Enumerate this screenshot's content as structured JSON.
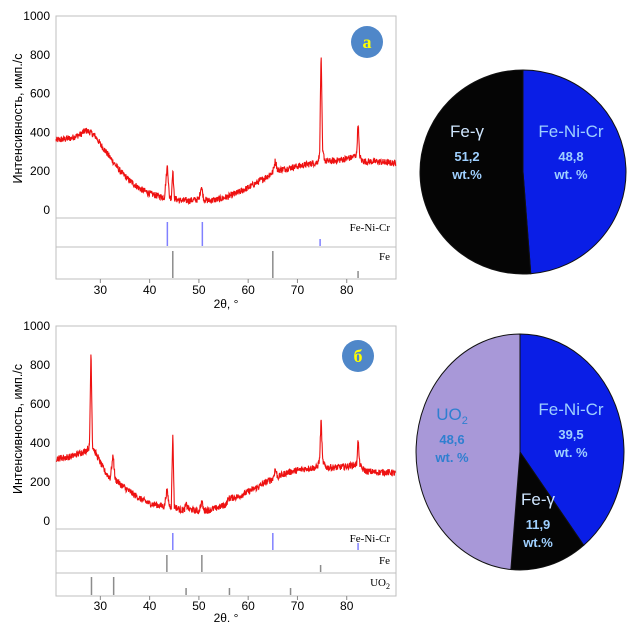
{
  "chart_data": [
    {
      "type": "line",
      "panel_label": "а",
      "ylabel": "Интенсивность, имп./с",
      "xlabel": "2θ, °",
      "xlim": [
        21,
        90
      ],
      "ylim": [
        0,
        1000
      ],
      "xticks": [
        30,
        40,
        50,
        60,
        70,
        80
      ],
      "yticks": [
        0,
        200,
        400,
        600,
        800,
        1000
      ],
      "series": [
        {
          "x": [
            21,
            24,
            26,
            27,
            28,
            29,
            30,
            32,
            34,
            36,
            38,
            40,
            42,
            43,
            43.6,
            44,
            44.4,
            44.7,
            45,
            46,
            48,
            50,
            50.5,
            51,
            52,
            54,
            56,
            58,
            60,
            62,
            64,
            65,
            65.5,
            66,
            68,
            70,
            72,
            74,
            74.5,
            74.8,
            75.1,
            75.6,
            76,
            78,
            80,
            81,
            82,
            82.3,
            82.6,
            83,
            84,
            86,
            88,
            90
          ],
          "y": [
            360,
            370,
            390,
            410,
            400,
            380,
            340,
            270,
            200,
            150,
            110,
            85,
            70,
            65,
            235,
            70,
            60,
            215,
            60,
            50,
            48,
            55,
            125,
            55,
            48,
            55,
            70,
            90,
            115,
            145,
            175,
            195,
            255,
            205,
            215,
            225,
            235,
            245,
            280,
            830,
            300,
            255,
            250,
            255,
            265,
            270,
            285,
            460,
            285,
            255,
            250,
            250,
            245,
            240
          ]
        }
      ],
      "reference_patterns": [
        {
          "name": "Fe-Ni-Cr",
          "color": "#8080ff",
          "peaks": [
            43.6,
            50.7,
            74.6
          ]
        },
        {
          "name": "Fe",
          "color": "#8c8c8c",
          "peaks": [
            44.7,
            65.0,
            82.3
          ]
        }
      ]
    },
    {
      "type": "line",
      "panel_label": "б",
      "ylabel": "Интенсивность, имп./с",
      "xlabel": "2θ. °",
      "xlim": [
        21,
        90
      ],
      "ylim": [
        0,
        1000
      ],
      "xticks": [
        30,
        40,
        50,
        60,
        70,
        80
      ],
      "yticks": [
        0,
        200,
        400,
        600,
        800,
        1000
      ],
      "series": [
        {
          "x": [
            21,
            24,
            26,
            27,
            27.8,
            28.1,
            28.4,
            29,
            30,
            31,
            32,
            32.6,
            33,
            34,
            36,
            38,
            40,
            42,
            43,
            43.5,
            44,
            44.4,
            44.7,
            45,
            46,
            47,
            47.4,
            48,
            50,
            50.6,
            51,
            52,
            54,
            55.5,
            56,
            58,
            60,
            62,
            64,
            65,
            65.5,
            66,
            68,
            70,
            72,
            74,
            74.5,
            74.8,
            75.1,
            75.6,
            76,
            78,
            80,
            81,
            82,
            82.3,
            82.6,
            83,
            84,
            86,
            88,
            90
          ],
          "y": [
            320,
            330,
            350,
            360,
            380,
            890,
            385,
            350,
            300,
            250,
            220,
            340,
            215,
            190,
            150,
            115,
            90,
            80,
            75,
            160,
            80,
            75,
            455,
            75,
            60,
            55,
            85,
            60,
            50,
            100,
            55,
            55,
            70,
            85,
            115,
            125,
            150,
            175,
            205,
            215,
            265,
            225,
            250,
            260,
            270,
            275,
            315,
            530,
            310,
            280,
            275,
            275,
            280,
            285,
            290,
            420,
            300,
            270,
            255,
            250,
            250,
            245
          ]
        }
      ],
      "reference_patterns": [
        {
          "name": "Fe-Ni-Cr",
          "color": "#8080ff",
          "peaks": [
            44.7,
            65.0,
            82.3
          ]
        },
        {
          "name": "Fe",
          "color": "#8c8c8c",
          "peaks": [
            43.5,
            50.6,
            74.7
          ]
        },
        {
          "name": "UO2",
          "color": "#8c8c8c",
          "peaks": [
            28.2,
            32.7,
            47.4,
            56.2,
            68.6
          ]
        }
      ]
    },
    {
      "type": "pie",
      "panel": "а",
      "slices": [
        {
          "label": "Fe-Ni-Cr",
          "value": 48.8,
          "value_text": "48,8",
          "unit": "wt. %",
          "color": "#0a1ee6",
          "text_color": "#9fd0ff"
        },
        {
          "label": "Fe-γ",
          "value": 51.2,
          "value_text": "51,2",
          "unit": "wt.%",
          "color": "#050505",
          "text_color": "#9fd0ff"
        }
      ]
    },
    {
      "type": "pie",
      "panel": "б",
      "slices": [
        {
          "label": "Fe-Ni-Cr",
          "value": 39.5,
          "value_text": "39,5",
          "unit": "wt. %",
          "color": "#0a1ee6",
          "text_color": "#9fd0ff"
        },
        {
          "label": "Fe-γ",
          "value": 11.9,
          "value_text": "11,9",
          "unit": "wt.%",
          "color": "#050505",
          "text_color": "#9fd0ff"
        },
        {
          "label": "UO₂",
          "value": 48.6,
          "value_text": "48,6",
          "unit": "wt. %",
          "color": "#a898d8",
          "text_color": "#2f7fd0"
        }
      ]
    }
  ],
  "colors": {
    "pattern_line": "#ee1111",
    "panel_badge_fill": "#4f87c9",
    "panel_badge_text": "#ffff00"
  }
}
